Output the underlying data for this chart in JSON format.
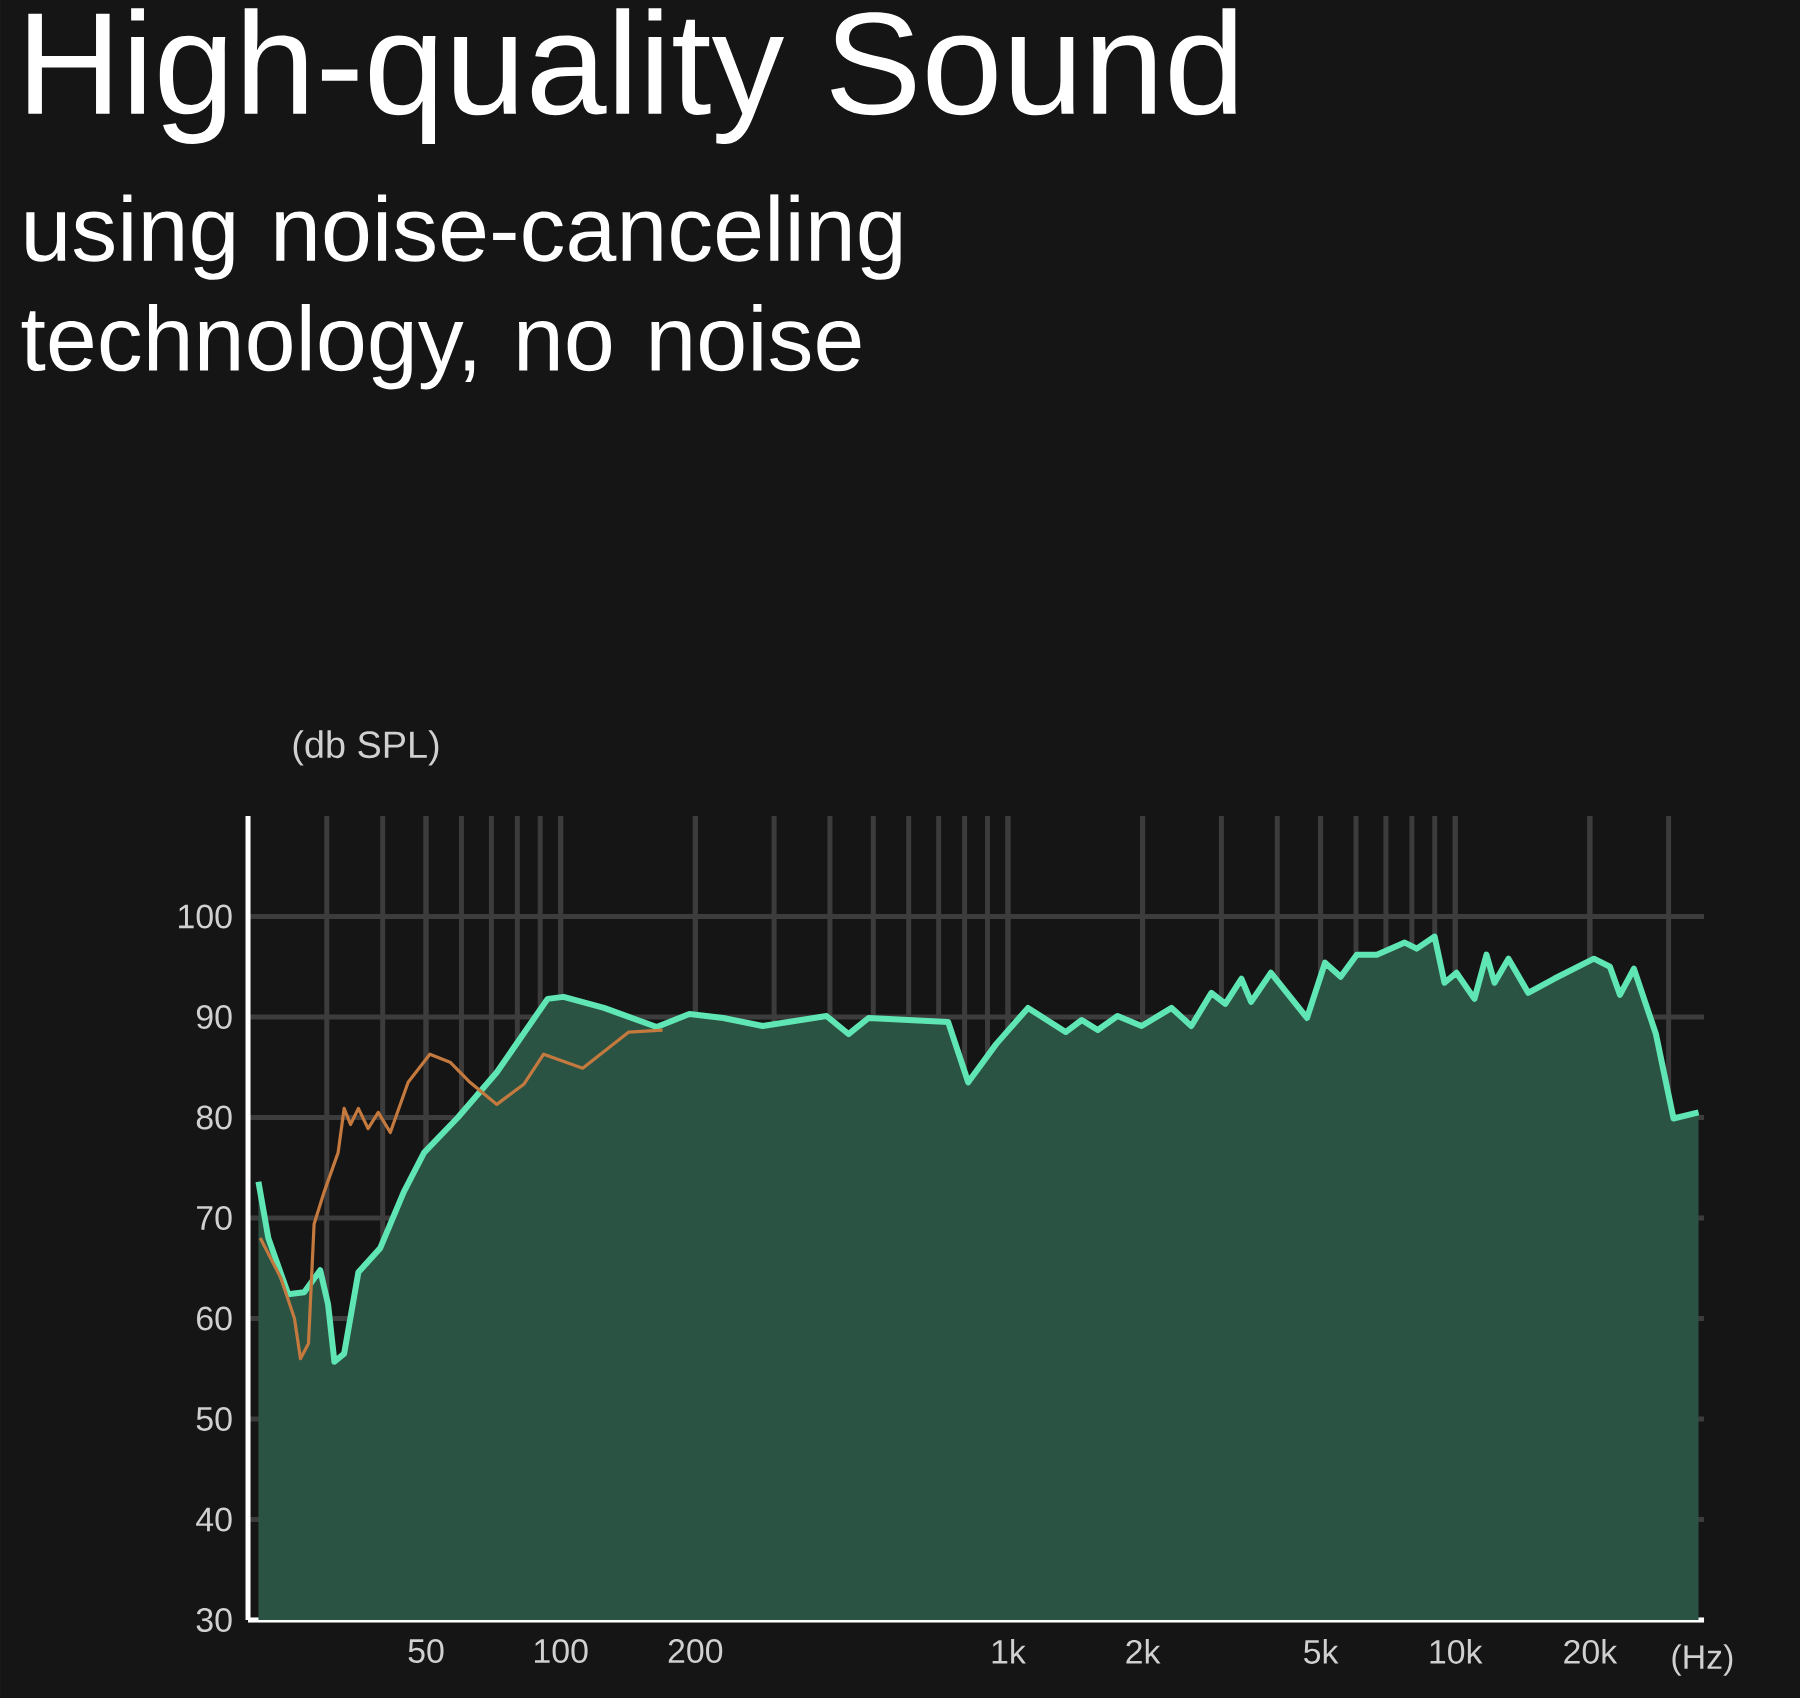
{
  "chart_data": {
    "type": "area",
    "title": "High-quality Sound",
    "subtitle": "using noise-canceling technology, no noise",
    "xlabel": "(Hz)",
    "ylabel": "(db SPL)",
    "log": "x",
    "grid": true,
    "marker": "none",
    "xlim": [
      20,
      36000
    ],
    "ylim": [
      30,
      110
    ],
    "xticks": [
      50,
      100,
      200,
      {
        "value": 1000,
        "label": "1k"
      },
      {
        "value": 2000,
        "label": "2k"
      },
      {
        "value": 5000,
        "label": "5k"
      },
      {
        "value": 10000,
        "label": "10k"
      },
      {
        "value": 20000,
        "label": "20k"
      }
    ],
    "yticks": [
      30,
      40,
      50,
      60,
      70,
      80,
      90,
      100
    ],
    "series": [
      {
        "color": "#5fe6b4",
        "x": [
          21.1,
          22.2,
          24.6,
          26.7,
          29.0,
          30.2,
          31.2,
          32.8,
          35.3,
          39.5,
          44.6,
          49.5,
          58.9,
          72,
          93.5,
          101.5,
          125,
          164,
          194,
          231,
          283,
          393,
          440,
          488,
          735,
          815,
          941,
          1109,
          1346,
          1462,
          1588,
          1758,
          1990,
          2322,
          2570,
          2850,
          3062,
          3326,
          3497,
          3873,
          4662,
          5116,
          5545,
          6025,
          6681,
          7713,
          8202,
          8994,
          9463,
          10065,
          11040,
          11744,
          12242,
          13152,
          14560,
          16637,
          20420,
          22180,
          23345,
          25090,
          28100,
          30760,
          35000
        ],
        "values": [
          73.6,
          68,
          62.4,
          62.6,
          64.8,
          61.4,
          55.7,
          56.5,
          64.6,
          67,
          72.6,
          76.5,
          80,
          84.5,
          91.8,
          92,
          90.9,
          89,
          90.3,
          89.9,
          89.1,
          90.1,
          88.3,
          89.9,
          89.5,
          83.5,
          87.3,
          90.9,
          88.5,
          89.7,
          88.7,
          90.1,
          89.1,
          90.9,
          89.1,
          92.4,
          91.3,
          93.8,
          91.5,
          94.4,
          89.9,
          95.4,
          94.0,
          96.2,
          96.2,
          97.4,
          96.8,
          98.0,
          93.4,
          94.4,
          91.8,
          96.2,
          93.4,
          95.8,
          92.4,
          93.8,
          95.8,
          95.0,
          92.2,
          94.8,
          88.3,
          79.9,
          80.5
        ]
      },
      {
        "type": "line",
        "color": "#c47a3e",
        "x": [
          21.3,
          23.7,
          25.4,
          26.2,
          27.3,
          28.1,
          29.6,
          31.8,
          32.8,
          33.9,
          35.3,
          37.1,
          39.1,
          41.6,
          45.6,
          51.0,
          56.6,
          62.7,
          72,
          82.7,
          91.6,
          112,
          142,
          169
        ],
        "values": [
          68,
          64,
          60,
          56,
          57.5,
          69.4,
          72.6,
          76.5,
          80.9,
          79.3,
          80.9,
          78.9,
          80.5,
          78.5,
          83.5,
          86.3,
          85.5,
          83.5,
          81.3,
          83.3,
          86.3,
          84.9,
          88.5,
          88.7
        ]
      }
    ]
  }
}
